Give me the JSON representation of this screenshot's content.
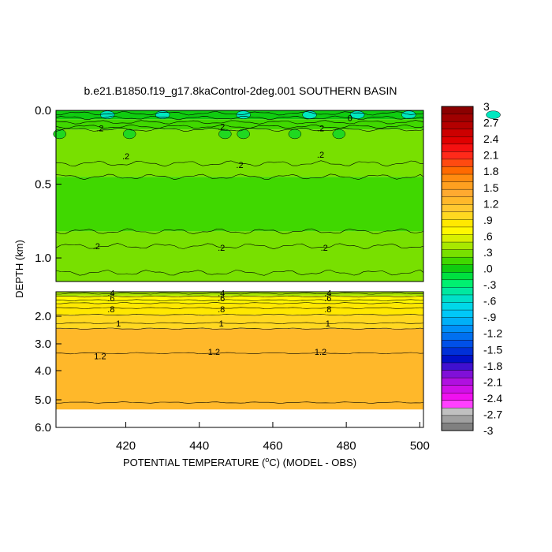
{
  "chart_data": {
    "type": "heatmap",
    "title": "b.e21.B1850.f19_g17.8kaControl-2deg.001 SOUTHERN BASIN",
    "xlabel": "POTENTIAL TEMPERATURE (",
    "xlabel_unit": "o",
    "xlabel_unit2": "C) (MODEL - OBS)",
    "ylabel": "DEPTH (km)",
    "xlim": [
      401,
      501
    ],
    "x_ticks": [
      "420",
      "440",
      "460",
      "480",
      "500"
    ],
    "upper_panel": {
      "ylim": [
        0.0,
        1.16
      ],
      "y_ticks": [
        "0.0",
        "0.5",
        "1.0"
      ],
      "bands": [
        {
          "from": 0.0,
          "to": 0.06,
          "value": 0.0
        },
        {
          "from": 0.06,
          "to": 0.13,
          "value": 0.2
        },
        {
          "from": 0.13,
          "to": 0.45,
          "value": 0.3
        },
        {
          "from": 0.45,
          "to": 0.82,
          "value": 0.2
        },
        {
          "from": 0.82,
          "to": 1.16,
          "value": 0.3
        }
      ],
      "contour_labels": [
        {
          "text": "0",
          "x": 481,
          "y": 0.05
        },
        {
          "text": ".2",
          "x": 413,
          "y": 0.12
        },
        {
          "text": ".2",
          "x": 446,
          "y": 0.11
        },
        {
          "text": ".2",
          "x": 473,
          "y": 0.12
        },
        {
          "text": ".2",
          "x": 420,
          "y": 0.31
        },
        {
          "text": ".2",
          "x": 451,
          "y": 0.37
        },
        {
          "text": ".2",
          "x": 473,
          "y": 0.3
        },
        {
          "text": ".2",
          "x": 412,
          "y": 0.92
        },
        {
          "text": ".2",
          "x": 446,
          "y": 0.93
        },
        {
          "text": ".2",
          "x": 474,
          "y": 0.93
        }
      ]
    },
    "lower_panel": {
      "ylim": [
        1.16,
        6.0
      ],
      "y_ticks": [
        "2.0",
        "3.0",
        "4.0",
        "5.0",
        "6.0"
      ],
      "data_bottom": 5.35,
      "bands": [
        {
          "from": 1.16,
          "to": 1.3,
          "value": 0.4
        },
        {
          "from": 1.3,
          "to": 1.55,
          "value": 0.7
        },
        {
          "from": 1.55,
          "to": 1.95,
          "value": 0.9
        },
        {
          "from": 1.95,
          "to": 2.45,
          "value": 1.0
        },
        {
          "from": 2.45,
          "to": 5.35,
          "value": 1.3
        }
      ],
      "contour_labels": [
        {
          "text": ".4",
          "x": 416,
          "y": 1.2
        },
        {
          "text": ".6",
          "x": 416,
          "y": 1.38
        },
        {
          "text": ".8",
          "x": 416,
          "y": 1.75
        },
        {
          "text": "1",
          "x": 418,
          "y": 2.25
        },
        {
          "text": "1.2",
          "x": 413,
          "y": 3.45
        },
        {
          "text": ".4",
          "x": 446,
          "y": 1.2
        },
        {
          "text": ".6",
          "x": 446,
          "y": 1.38
        },
        {
          "text": ".8",
          "x": 446,
          "y": 1.75
        },
        {
          "text": "1",
          "x": 446,
          "y": 2.25
        },
        {
          "text": "1.2",
          "x": 444,
          "y": 3.3
        },
        {
          "text": ".4",
          "x": 475,
          "y": 1.2
        },
        {
          "text": ".6",
          "x": 475,
          "y": 1.38
        },
        {
          "text": ".8",
          "x": 475,
          "y": 1.75
        },
        {
          "text": "1",
          "x": 475,
          "y": 2.25
        },
        {
          "text": "1.2",
          "x": 473,
          "y": 3.3
        }
      ]
    },
    "colorbar": {
      "labels": [
        "3",
        "2.7",
        "2.4",
        "2.1",
        "1.8",
        "1.5",
        "1.2",
        ".9",
        ".6",
        ".3",
        ".0",
        "-.3",
        "-.6",
        "-.9",
        "-1.2",
        "-1.5",
        "-1.8",
        "-2.1",
        "-2.4",
        "-2.7",
        "-3"
      ],
      "colors": [
        "#8b0000",
        "#a00000",
        "#b40000",
        "#cc0000",
        "#e00000",
        "#f51010",
        "#ff2a1a",
        "#ff4a10",
        "#ff6a00",
        "#ff8c10",
        "#ffa020",
        "#ffaa30",
        "#ffb82a",
        "#ffc830",
        "#ffd820",
        "#ffe800",
        "#fff800",
        "#d8f000",
        "#a8e800",
        "#78e000",
        "#40d800",
        "#10cc10",
        "#00e040",
        "#00f070",
        "#00e8a0",
        "#00e0c8",
        "#00d8e8",
        "#00c8f8",
        "#00b0f8",
        "#0090f8",
        "#0070f0",
        "#0050e8",
        "#0030d8",
        "#0010c8",
        "#4010d0",
        "#8010d8",
        "#b010e0",
        "#d010e8",
        "#f010f0",
        "#ff40ff",
        "#c0c0c0",
        "#a0a0a0",
        "#808080"
      ]
    }
  }
}
